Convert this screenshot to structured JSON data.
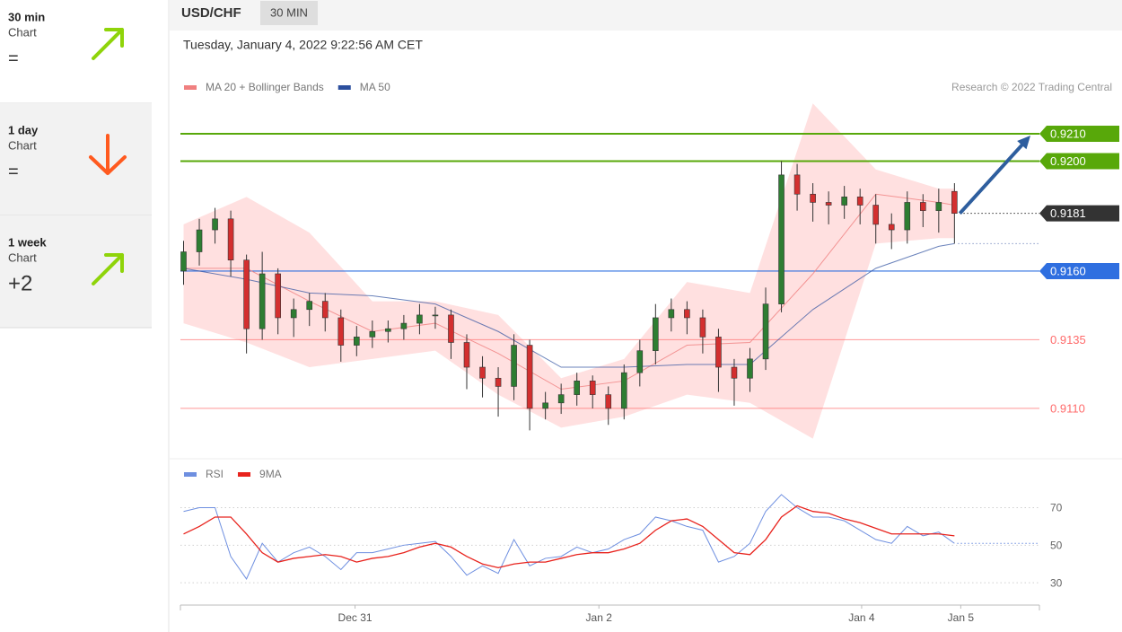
{
  "sidebar": {
    "cards": [
      {
        "title": "30 min",
        "subtitle": "Chart",
        "value": "=",
        "direction": "up"
      },
      {
        "title": "1 day",
        "subtitle": "Chart",
        "value": "=",
        "direction": "down"
      },
      {
        "title": "1 week",
        "subtitle": "Chart",
        "value": "+2",
        "direction": "up"
      }
    ]
  },
  "header": {
    "symbol": "USD/CHF",
    "timeframe": "30 MIN",
    "timestamp": "Tuesday, January 4, 2022 9:22:56 AM CET",
    "credit": "Research © 2022 Trading Central"
  },
  "chart_data": [
    {
      "type": "candlestick",
      "up_color": "#2e7d32",
      "down_color": "#d32f2f",
      "xlim": [
        -0.2,
        54.4
      ],
      "ylim": [
        0.9092,
        0.9226
      ],
      "open": [
        0.916,
        0.9167,
        0.9175,
        0.9179,
        0.9164,
        0.9139,
        0.9159,
        0.9143,
        0.9146,
        0.9149,
        0.9143,
        0.9133,
        0.9136,
        0.9138,
        0.9139,
        0.9141,
        0.9144,
        0.9144,
        0.9134,
        0.9125,
        0.9121,
        0.9118,
        0.9133,
        0.911,
        0.9112,
        0.9115,
        0.912,
        0.9115,
        0.911,
        0.9123,
        0.9131,
        0.9143,
        0.9146,
        0.9143,
        0.9136,
        0.9125,
        0.9121,
        0.9128,
        0.9148,
        0.9195,
        0.9188,
        0.9185,
        0.9184,
        0.9187,
        0.9184,
        0.9177,
        0.9175,
        0.9185,
        0.9182,
        0.9189
      ],
      "high": [
        0.9171,
        0.9179,
        0.9183,
        0.9182,
        0.9166,
        0.9167,
        0.9161,
        0.915,
        0.9152,
        0.9152,
        0.9146,
        0.914,
        0.9142,
        0.9142,
        0.9144,
        0.9148,
        0.9147,
        0.9146,
        0.9137,
        0.9129,
        0.9125,
        0.9137,
        0.9135,
        0.9116,
        0.9119,
        0.9123,
        0.9122,
        0.9118,
        0.9126,
        0.9135,
        0.9148,
        0.915,
        0.9149,
        0.9146,
        0.9139,
        0.9128,
        0.9132,
        0.9154,
        0.92,
        0.9199,
        0.9192,
        0.9189,
        0.9191,
        0.919,
        0.9188,
        0.9181,
        0.9189,
        0.9188,
        0.919,
        0.9192
      ],
      "low": [
        0.9155,
        0.9162,
        0.917,
        0.9158,
        0.913,
        0.9135,
        0.9137,
        0.9136,
        0.914,
        0.9138,
        0.9127,
        0.9129,
        0.9132,
        0.9134,
        0.9135,
        0.9137,
        0.9139,
        0.9128,
        0.9117,
        0.9114,
        0.9107,
        0.9113,
        0.9102,
        0.9106,
        0.9108,
        0.9111,
        0.911,
        0.9104,
        0.9106,
        0.9118,
        0.9126,
        0.9138,
        0.9137,
        0.913,
        0.9116,
        0.9111,
        0.9116,
        0.9124,
        0.9145,
        0.9182,
        0.9178,
        0.9177,
        0.9179,
        0.9177,
        0.917,
        0.9168,
        0.917,
        0.9176,
        0.9174,
        0.917
      ],
      "close": [
        0.9167,
        0.9175,
        0.9179,
        0.9164,
        0.9139,
        0.9159,
        0.9143,
        0.9146,
        0.9149,
        0.9143,
        0.9133,
        0.9136,
        0.9138,
        0.9139,
        0.9141,
        0.9144,
        0.9144,
        0.9134,
        0.9125,
        0.9121,
        0.9118,
        0.9133,
        0.911,
        0.9112,
        0.9115,
        0.912,
        0.9115,
        0.911,
        0.9123,
        0.9131,
        0.9143,
        0.9146,
        0.9143,
        0.9136,
        0.9125,
        0.9121,
        0.9128,
        0.9148,
        0.9195,
        0.9188,
        0.9185,
        0.9184,
        0.9187,
        0.9184,
        0.9177,
        0.9175,
        0.9185,
        0.9182,
        0.9185,
        0.9181
      ],
      "series": [
        {
          "name": "MA 20 + Bollinger Bands",
          "color": "#f08080",
          "x": [
            0,
            4,
            8,
            12,
            16,
            20,
            24,
            28,
            32,
            36,
            40,
            44,
            48,
            49
          ],
          "values": [
            0.9161,
            0.9161,
            0.9149,
            0.9138,
            0.9141,
            0.913,
            0.9117,
            0.912,
            0.9133,
            0.9134,
            0.9159,
            0.9188,
            0.9185,
            0.9184
          ],
          "upper": [
            0.9177,
            0.9187,
            0.9174,
            0.9149,
            0.9149,
            0.9144,
            0.9121,
            0.9128,
            0.9156,
            0.9152,
            0.9221,
            0.9197,
            0.919,
            0.919
          ],
          "lower": [
            0.9141,
            0.9134,
            0.9125,
            0.9128,
            0.9131,
            0.9115,
            0.9103,
            0.9107,
            0.9115,
            0.9112,
            0.9099,
            0.917,
            0.9172,
            0.9172
          ]
        },
        {
          "name": "MA 50",
          "color": "#2c4f9e",
          "x": [
            0,
            4,
            8,
            12,
            16,
            20,
            24,
            28,
            32,
            36,
            40,
            44,
            48,
            49
          ],
          "values": [
            0.9161,
            0.9157,
            0.9152,
            0.9151,
            0.9148,
            0.9138,
            0.9125,
            0.9125,
            0.9126,
            0.9126,
            0.9146,
            0.9161,
            0.9169,
            0.917
          ]
        }
      ],
      "levels": [
        {
          "value": 0.921,
          "label": "0.9210",
          "color": "#58a80a",
          "style": "box",
          "line": "full"
        },
        {
          "value": 0.92,
          "label": "0.9200",
          "color": "#58a80a",
          "style": "box",
          "line": "full"
        },
        {
          "value": 0.9181,
          "label": "0.9181",
          "color": "#333333",
          "style": "box",
          "line": "dotted"
        },
        {
          "value": 0.916,
          "label": "0.9160",
          "color": "#2f6fe0",
          "style": "box",
          "line": "full"
        },
        {
          "value": 0.9135,
          "label": "0.9135",
          "color": "#ff6b6b",
          "style": "text",
          "line": "full"
        },
        {
          "value": 0.911,
          "label": "0.9110",
          "color": "#ff6b6b",
          "style": "text",
          "line": "full"
        }
      ]
    },
    {
      "type": "line",
      "xlim": [
        -0.2,
        54.4
      ],
      "ylim": [
        20,
        87
      ],
      "yticks": [
        30,
        50,
        70
      ],
      "grid": true,
      "xticks": [
        {
          "value": 10.9,
          "label": "Dec 31"
        },
        {
          "value": 26.4,
          "label": "Jan 2"
        },
        {
          "value": 43.1,
          "label": "Jan 4"
        },
        {
          "value": 49.4,
          "label": "Jan 5"
        }
      ],
      "series": [
        {
          "name": "RSI",
          "color": "#6e8fe0",
          "values": [
            68,
            70,
            70,
            44,
            32,
            51,
            41,
            46,
            49,
            44,
            37,
            46,
            46,
            48,
            50,
            51,
            52,
            44,
            34,
            39,
            35,
            53,
            39,
            43,
            44,
            49,
            46,
            48,
            53,
            56,
            65,
            63,
            60,
            58,
            41,
            44,
            51,
            68,
            77,
            70,
            65,
            65,
            63,
            58,
            53,
            51,
            60,
            55,
            57,
            51
          ]
        },
        {
          "name": "9MA",
          "color": "#e8231d",
          "values": [
            56,
            60,
            65,
            65,
            56,
            46,
            41,
            43,
            44,
            45,
            44,
            41,
            43,
            44,
            46,
            49,
            51,
            49,
            44,
            40,
            38,
            40,
            41,
            41,
            43,
            45,
            46,
            46,
            48,
            51,
            58,
            63,
            64,
            60,
            53,
            46,
            45,
            53,
            65,
            71,
            68,
            67,
            64,
            62,
            59,
            56,
            56,
            56,
            56,
            55
          ]
        }
      ]
    }
  ]
}
